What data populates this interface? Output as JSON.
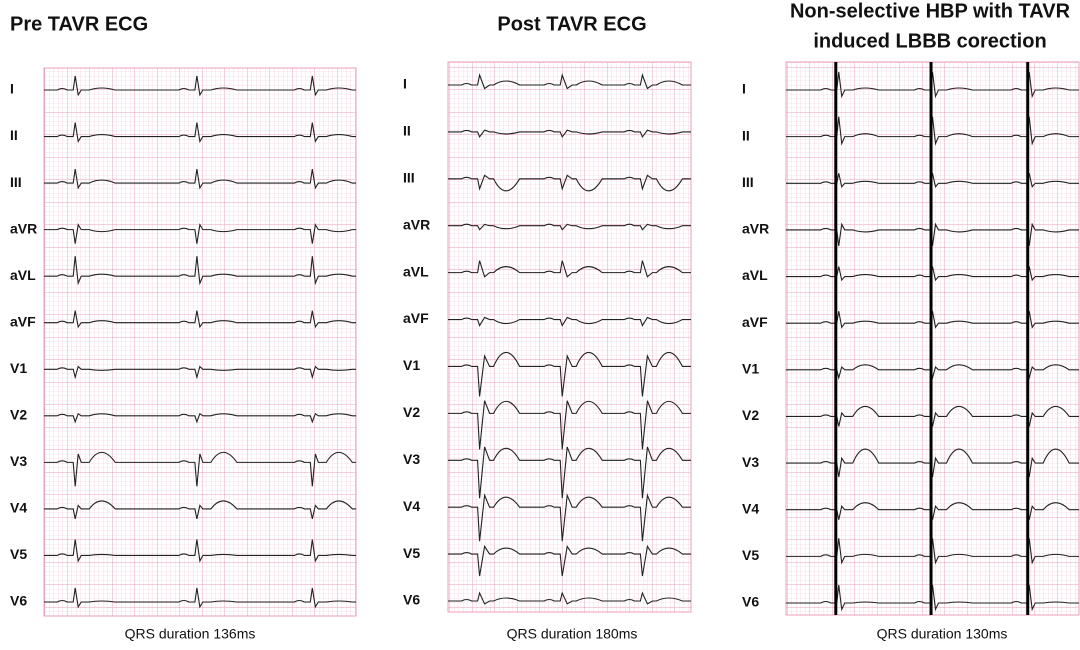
{
  "panels": [
    {
      "title_lines": [
        "Pre TAVR ECG"
      ],
      "leads": [
        "I",
        "II",
        "III",
        "aVR",
        "aVL",
        "aVF",
        "V1",
        "V2",
        "V3",
        "V4",
        "V5",
        "V6"
      ],
      "caption": "QRS duration 136ms"
    },
    {
      "title_lines": [
        "Post TAVR ECG"
      ],
      "leads": [
        "I",
        "II",
        "III",
        "aVR",
        "aVL",
        "aVF",
        "V1",
        "V2",
        "V3",
        "V4",
        "V5",
        "V6"
      ],
      "caption": "QRS duration 180ms"
    },
    {
      "title_lines": [
        "Non-selective HBP with TAVR",
        "induced LBBB corection"
      ],
      "leads": [
        "I",
        "II",
        "III",
        "aVR",
        "aVL",
        "aVF",
        "V1",
        "V2",
        "V3",
        "V4",
        "V5",
        "V6"
      ],
      "caption": "QRS duration 130ms"
    }
  ]
}
